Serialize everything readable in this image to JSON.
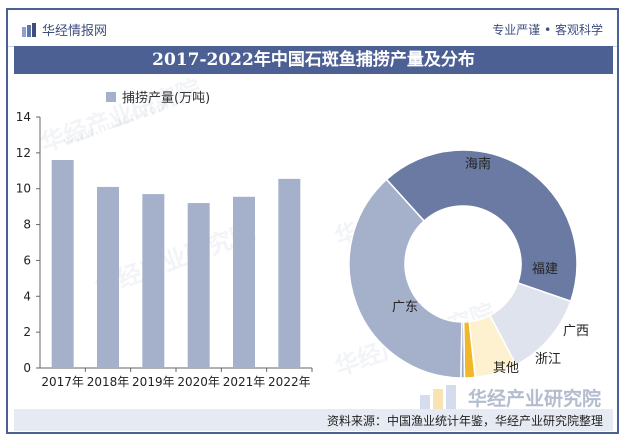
{
  "header": {
    "brand": "华经情报网",
    "slogan": "专业严谨 • 客观科学"
  },
  "title": "2017-2022年中国石斑鱼捕捞产量及分布",
  "legend_label": "捕捞产量(万吨)",
  "watermark_text": "华经产业研究院",
  "watermark_url": "www.huaon.com",
  "source": "资料来源：中国渔业统计年鉴，华经产业研究院整理",
  "brand_overlay": "华经产业研究院",
  "colors": {
    "accent": "#4d6094",
    "bar": "#a5b1cb"
  },
  "chart_data": [
    {
      "type": "bar",
      "categories": [
        "2017年",
        "2018年",
        "2019年",
        "2020年",
        "2021年",
        "2022年"
      ],
      "series": [
        {
          "name": "捕捞产量(万吨)",
          "values": [
            11.6,
            10.1,
            9.7,
            9.2,
            9.55,
            10.55
          ]
        }
      ],
      "ylim": [
        0,
        14
      ],
      "yticks": [
        0,
        2,
        4,
        6,
        8,
        10,
        12,
        14
      ],
      "grid": false,
      "legend": "top-left"
    },
    {
      "type": "pie",
      "donut": true,
      "slices": [
        {
          "label": "海南",
          "value": 42,
          "color": "#6a7aa3"
        },
        {
          "label": "福建",
          "value": 12,
          "color": "#dfe3ee"
        },
        {
          "label": "广西",
          "value": 6,
          "color": "#fdf1cf"
        },
        {
          "label": "浙江",
          "value": 1.5,
          "color": "#f1b72a"
        },
        {
          "label": "其他",
          "value": 0.5,
          "color": "#9aa6c3"
        },
        {
          "label": "广东",
          "value": 38,
          "color": "#a5b1cb"
        }
      ]
    }
  ]
}
